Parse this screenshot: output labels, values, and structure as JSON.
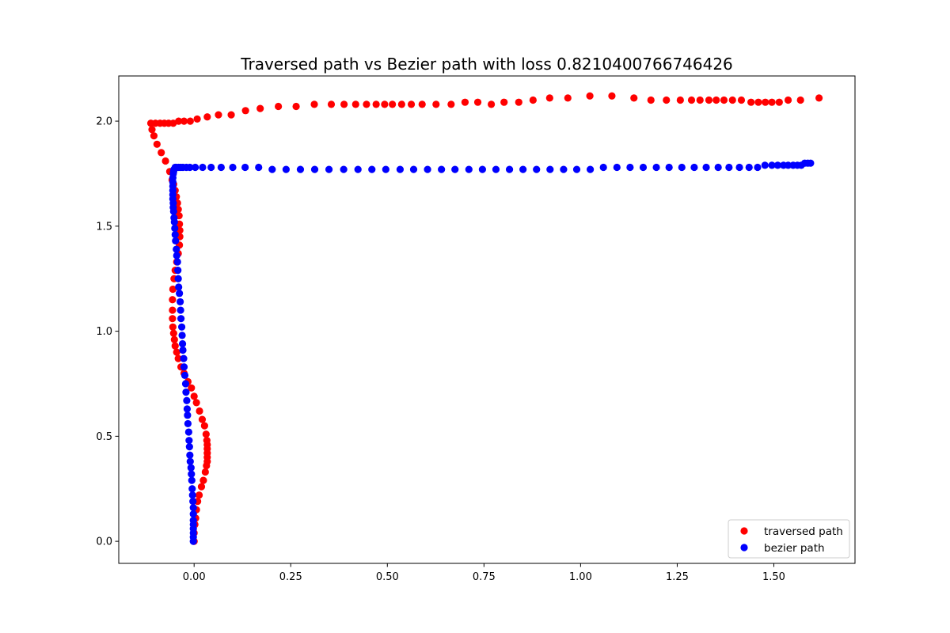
{
  "chart_data": {
    "type": "scatter",
    "title": "Traversed path vs Bezier path with loss 0.8210400766746426",
    "xlabel": "",
    "ylabel": "",
    "xlim": [
      -0.195,
      1.71
    ],
    "ylim": [
      -0.105,
      2.215
    ],
    "xticks": [
      0.0,
      0.25,
      0.5,
      0.75,
      1.0,
      1.25,
      1.5
    ],
    "xtick_labels": [
      "0.00",
      "0.25",
      "0.50",
      "0.75",
      "1.00",
      "1.25",
      "1.50"
    ],
    "yticks": [
      0.0,
      0.5,
      1.0,
      1.5,
      2.0
    ],
    "ytick_labels": [
      "0.0",
      "0.5",
      "1.0",
      "1.5",
      "2.0"
    ],
    "grid": false,
    "legend_position": "lower-right",
    "series": [
      {
        "name": "traversed path",
        "color": "#ff0000",
        "points": [
          [
            0.0,
            0.0
          ],
          [
            0.0,
            0.04
          ],
          [
            0.002,
            0.08
          ],
          [
            0.004,
            0.11
          ],
          [
            0.006,
            0.15
          ],
          [
            0.009,
            0.19
          ],
          [
            0.013,
            0.22
          ],
          [
            0.019,
            0.26
          ],
          [
            0.024,
            0.29
          ],
          [
            0.029,
            0.33
          ],
          [
            0.032,
            0.36
          ],
          [
            0.034,
            0.38
          ],
          [
            0.034,
            0.4
          ],
          [
            0.034,
            0.42
          ],
          [
            0.034,
            0.44
          ],
          [
            0.034,
            0.46
          ],
          [
            0.033,
            0.48
          ],
          [
            0.031,
            0.51
          ],
          [
            0.027,
            0.55
          ],
          [
            0.021,
            0.58
          ],
          [
            0.014,
            0.62
          ],
          [
            0.006,
            0.66
          ],
          [
            0.0,
            0.69
          ],
          [
            -0.007,
            0.73
          ],
          [
            -0.016,
            0.76
          ],
          [
            -0.026,
            0.8
          ],
          [
            -0.034,
            0.83
          ],
          [
            -0.041,
            0.87
          ],
          [
            -0.045,
            0.9
          ],
          [
            -0.049,
            0.93
          ],
          [
            -0.051,
            0.96
          ],
          [
            -0.053,
            0.99
          ],
          [
            -0.055,
            1.02
          ],
          [
            -0.056,
            1.06
          ],
          [
            -0.056,
            1.1
          ],
          [
            -0.056,
            1.15
          ],
          [
            -0.055,
            1.2
          ],
          [
            -0.052,
            1.25
          ],
          [
            -0.049,
            1.29
          ],
          [
            -0.045,
            1.33
          ],
          [
            -0.041,
            1.37
          ],
          [
            -0.038,
            1.41
          ],
          [
            -0.037,
            1.45
          ],
          [
            -0.037,
            1.48
          ],
          [
            -0.038,
            1.51
          ],
          [
            -0.039,
            1.55
          ],
          [
            -0.041,
            1.58
          ],
          [
            -0.043,
            1.61
          ],
          [
            -0.046,
            1.64
          ],
          [
            -0.049,
            1.67
          ],
          [
            -0.053,
            1.7
          ],
          [
            -0.057,
            1.72
          ],
          [
            -0.063,
            1.76
          ],
          [
            -0.074,
            1.81
          ],
          [
            -0.085,
            1.85
          ],
          [
            -0.096,
            1.89
          ],
          [
            -0.104,
            1.93
          ],
          [
            -0.109,
            1.96
          ],
          [
            -0.112,
            1.99
          ],
          [
            -0.1,
            1.99
          ],
          [
            -0.088,
            1.99
          ],
          [
            -0.077,
            1.99
          ],
          [
            -0.066,
            1.99
          ],
          [
            -0.054,
            1.99
          ],
          [
            -0.04,
            2.0
          ],
          [
            -0.026,
            2.0
          ],
          [
            -0.01,
            2.0
          ],
          [
            0.008,
            2.01
          ],
          [
            0.034,
            2.02
          ],
          [
            0.063,
            2.03
          ],
          [
            0.096,
            2.03
          ],
          [
            0.133,
            2.05
          ],
          [
            0.171,
            2.06
          ],
          [
            0.218,
            2.07
          ],
          [
            0.264,
            2.07
          ],
          [
            0.311,
            2.08
          ],
          [
            0.355,
            2.08
          ],
          [
            0.388,
            2.08
          ],
          [
            0.418,
            2.08
          ],
          [
            0.446,
            2.08
          ],
          [
            0.471,
            2.08
          ],
          [
            0.493,
            2.08
          ],
          [
            0.513,
            2.08
          ],
          [
            0.537,
            2.08
          ],
          [
            0.562,
            2.08
          ],
          [
            0.59,
            2.08
          ],
          [
            0.626,
            2.08
          ],
          [
            0.665,
            2.08
          ],
          [
            0.701,
            2.09
          ],
          [
            0.734,
            2.09
          ],
          [
            0.769,
            2.08
          ],
          [
            0.802,
            2.09
          ],
          [
            0.84,
            2.09
          ],
          [
            0.877,
            2.1
          ],
          [
            0.92,
            2.11
          ],
          [
            0.967,
            2.11
          ],
          [
            1.024,
            2.12
          ],
          [
            1.081,
            2.12
          ],
          [
            1.138,
            2.11
          ],
          [
            1.182,
            2.1
          ],
          [
            1.222,
            2.1
          ],
          [
            1.258,
            2.1
          ],
          [
            1.287,
            2.1
          ],
          [
            1.309,
            2.1
          ],
          [
            1.332,
            2.1
          ],
          [
            1.351,
            2.1
          ],
          [
            1.371,
            2.1
          ],
          [
            1.393,
            2.1
          ],
          [
            1.416,
            2.1
          ],
          [
            1.441,
            2.09
          ],
          [
            1.46,
            2.09
          ],
          [
            1.478,
            2.09
          ],
          [
            1.495,
            2.09
          ],
          [
            1.514,
            2.09
          ],
          [
            1.537,
            2.1
          ],
          [
            1.569,
            2.1
          ],
          [
            1.617,
            2.11
          ]
        ]
      },
      {
        "name": "bezier path",
        "color": "#0000ff",
        "points": [
          [
            -0.002,
            0.0
          ],
          [
            -0.002,
            0.02
          ],
          [
            -0.002,
            0.04
          ],
          [
            -0.002,
            0.06
          ],
          [
            -0.002,
            0.08
          ],
          [
            -0.002,
            0.1
          ],
          [
            -0.002,
            0.13
          ],
          [
            -0.002,
            0.16
          ],
          [
            -0.003,
            0.19
          ],
          [
            -0.004,
            0.22
          ],
          [
            -0.005,
            0.25
          ],
          [
            -0.006,
            0.29
          ],
          [
            -0.007,
            0.32
          ],
          [
            -0.008,
            0.35
          ],
          [
            -0.01,
            0.38
          ],
          [
            -0.011,
            0.41
          ],
          [
            -0.012,
            0.45
          ],
          [
            -0.013,
            0.48
          ],
          [
            -0.014,
            0.52
          ],
          [
            -0.016,
            0.56
          ],
          [
            -0.017,
            0.6
          ],
          [
            -0.018,
            0.63
          ],
          [
            -0.019,
            0.67
          ],
          [
            -0.021,
            0.71
          ],
          [
            -0.022,
            0.75
          ],
          [
            -0.024,
            0.79
          ],
          [
            -0.026,
            0.83
          ],
          [
            -0.027,
            0.87
          ],
          [
            -0.029,
            0.91
          ],
          [
            -0.03,
            0.94
          ],
          [
            -0.031,
            0.98
          ],
          [
            -0.032,
            1.02
          ],
          [
            -0.034,
            1.06
          ],
          [
            -0.035,
            1.1
          ],
          [
            -0.036,
            1.14
          ],
          [
            -0.038,
            1.18
          ],
          [
            -0.04,
            1.21
          ],
          [
            -0.041,
            1.25
          ],
          [
            -0.042,
            1.29
          ],
          [
            -0.043,
            1.33
          ],
          [
            -0.045,
            1.36
          ],
          [
            -0.046,
            1.39
          ],
          [
            -0.048,
            1.43
          ],
          [
            -0.049,
            1.46
          ],
          [
            -0.05,
            1.49
          ],
          [
            -0.051,
            1.52
          ],
          [
            -0.052,
            1.54
          ],
          [
            -0.053,
            1.57
          ],
          [
            -0.054,
            1.59
          ],
          [
            -0.054,
            1.61
          ],
          [
            -0.055,
            1.63
          ],
          [
            -0.055,
            1.65
          ],
          [
            -0.055,
            1.67
          ],
          [
            -0.055,
            1.69
          ],
          [
            -0.055,
            1.71
          ],
          [
            -0.055,
            1.73
          ],
          [
            -0.054,
            1.75
          ],
          [
            -0.053,
            1.76
          ],
          [
            -0.052,
            1.77
          ],
          [
            -0.049,
            1.78
          ],
          [
            -0.046,
            1.78
          ],
          [
            -0.04,
            1.78
          ],
          [
            -0.035,
            1.78
          ],
          [
            -0.029,
            1.78
          ],
          [
            -0.02,
            1.78
          ],
          [
            -0.011,
            1.78
          ],
          [
            0.003,
            1.78
          ],
          [
            0.022,
            1.78
          ],
          [
            0.044,
            1.78
          ],
          [
            0.07,
            1.78
          ],
          [
            0.1,
            1.78
          ],
          [
            0.132,
            1.78
          ],
          [
            0.167,
            1.78
          ],
          [
            0.202,
            1.77
          ],
          [
            0.238,
            1.77
          ],
          [
            0.275,
            1.77
          ],
          [
            0.312,
            1.77
          ],
          [
            0.349,
            1.77
          ],
          [
            0.387,
            1.77
          ],
          [
            0.424,
            1.77
          ],
          [
            0.46,
            1.77
          ],
          [
            0.496,
            1.77
          ],
          [
            0.533,
            1.77
          ],
          [
            0.568,
            1.77
          ],
          [
            0.604,
            1.77
          ],
          [
            0.64,
            1.77
          ],
          [
            0.675,
            1.77
          ],
          [
            0.711,
            1.77
          ],
          [
            0.746,
            1.77
          ],
          [
            0.781,
            1.77
          ],
          [
            0.816,
            1.77
          ],
          [
            0.851,
            1.77
          ],
          [
            0.886,
            1.77
          ],
          [
            0.921,
            1.77
          ],
          [
            0.956,
            1.77
          ],
          [
            0.99,
            1.77
          ],
          [
            1.025,
            1.77
          ],
          [
            1.059,
            1.78
          ],
          [
            1.094,
            1.78
          ],
          [
            1.128,
            1.78
          ],
          [
            1.162,
            1.78
          ],
          [
            1.196,
            1.78
          ],
          [
            1.229,
            1.78
          ],
          [
            1.262,
            1.78
          ],
          [
            1.294,
            1.78
          ],
          [
            1.325,
            1.78
          ],
          [
            1.356,
            1.78
          ],
          [
            1.384,
            1.78
          ],
          [
            1.411,
            1.78
          ],
          [
            1.436,
            1.78
          ],
          [
            1.458,
            1.78
          ],
          [
            1.477,
            1.79
          ],
          [
            1.495,
            1.79
          ],
          [
            1.51,
            1.79
          ],
          [
            1.525,
            1.79
          ],
          [
            1.537,
            1.79
          ],
          [
            1.55,
            1.79
          ],
          [
            1.561,
            1.79
          ],
          [
            1.571,
            1.79
          ],
          [
            1.58,
            1.8
          ],
          [
            1.588,
            1.8
          ],
          [
            1.595,
            1.8
          ]
        ]
      }
    ]
  }
}
